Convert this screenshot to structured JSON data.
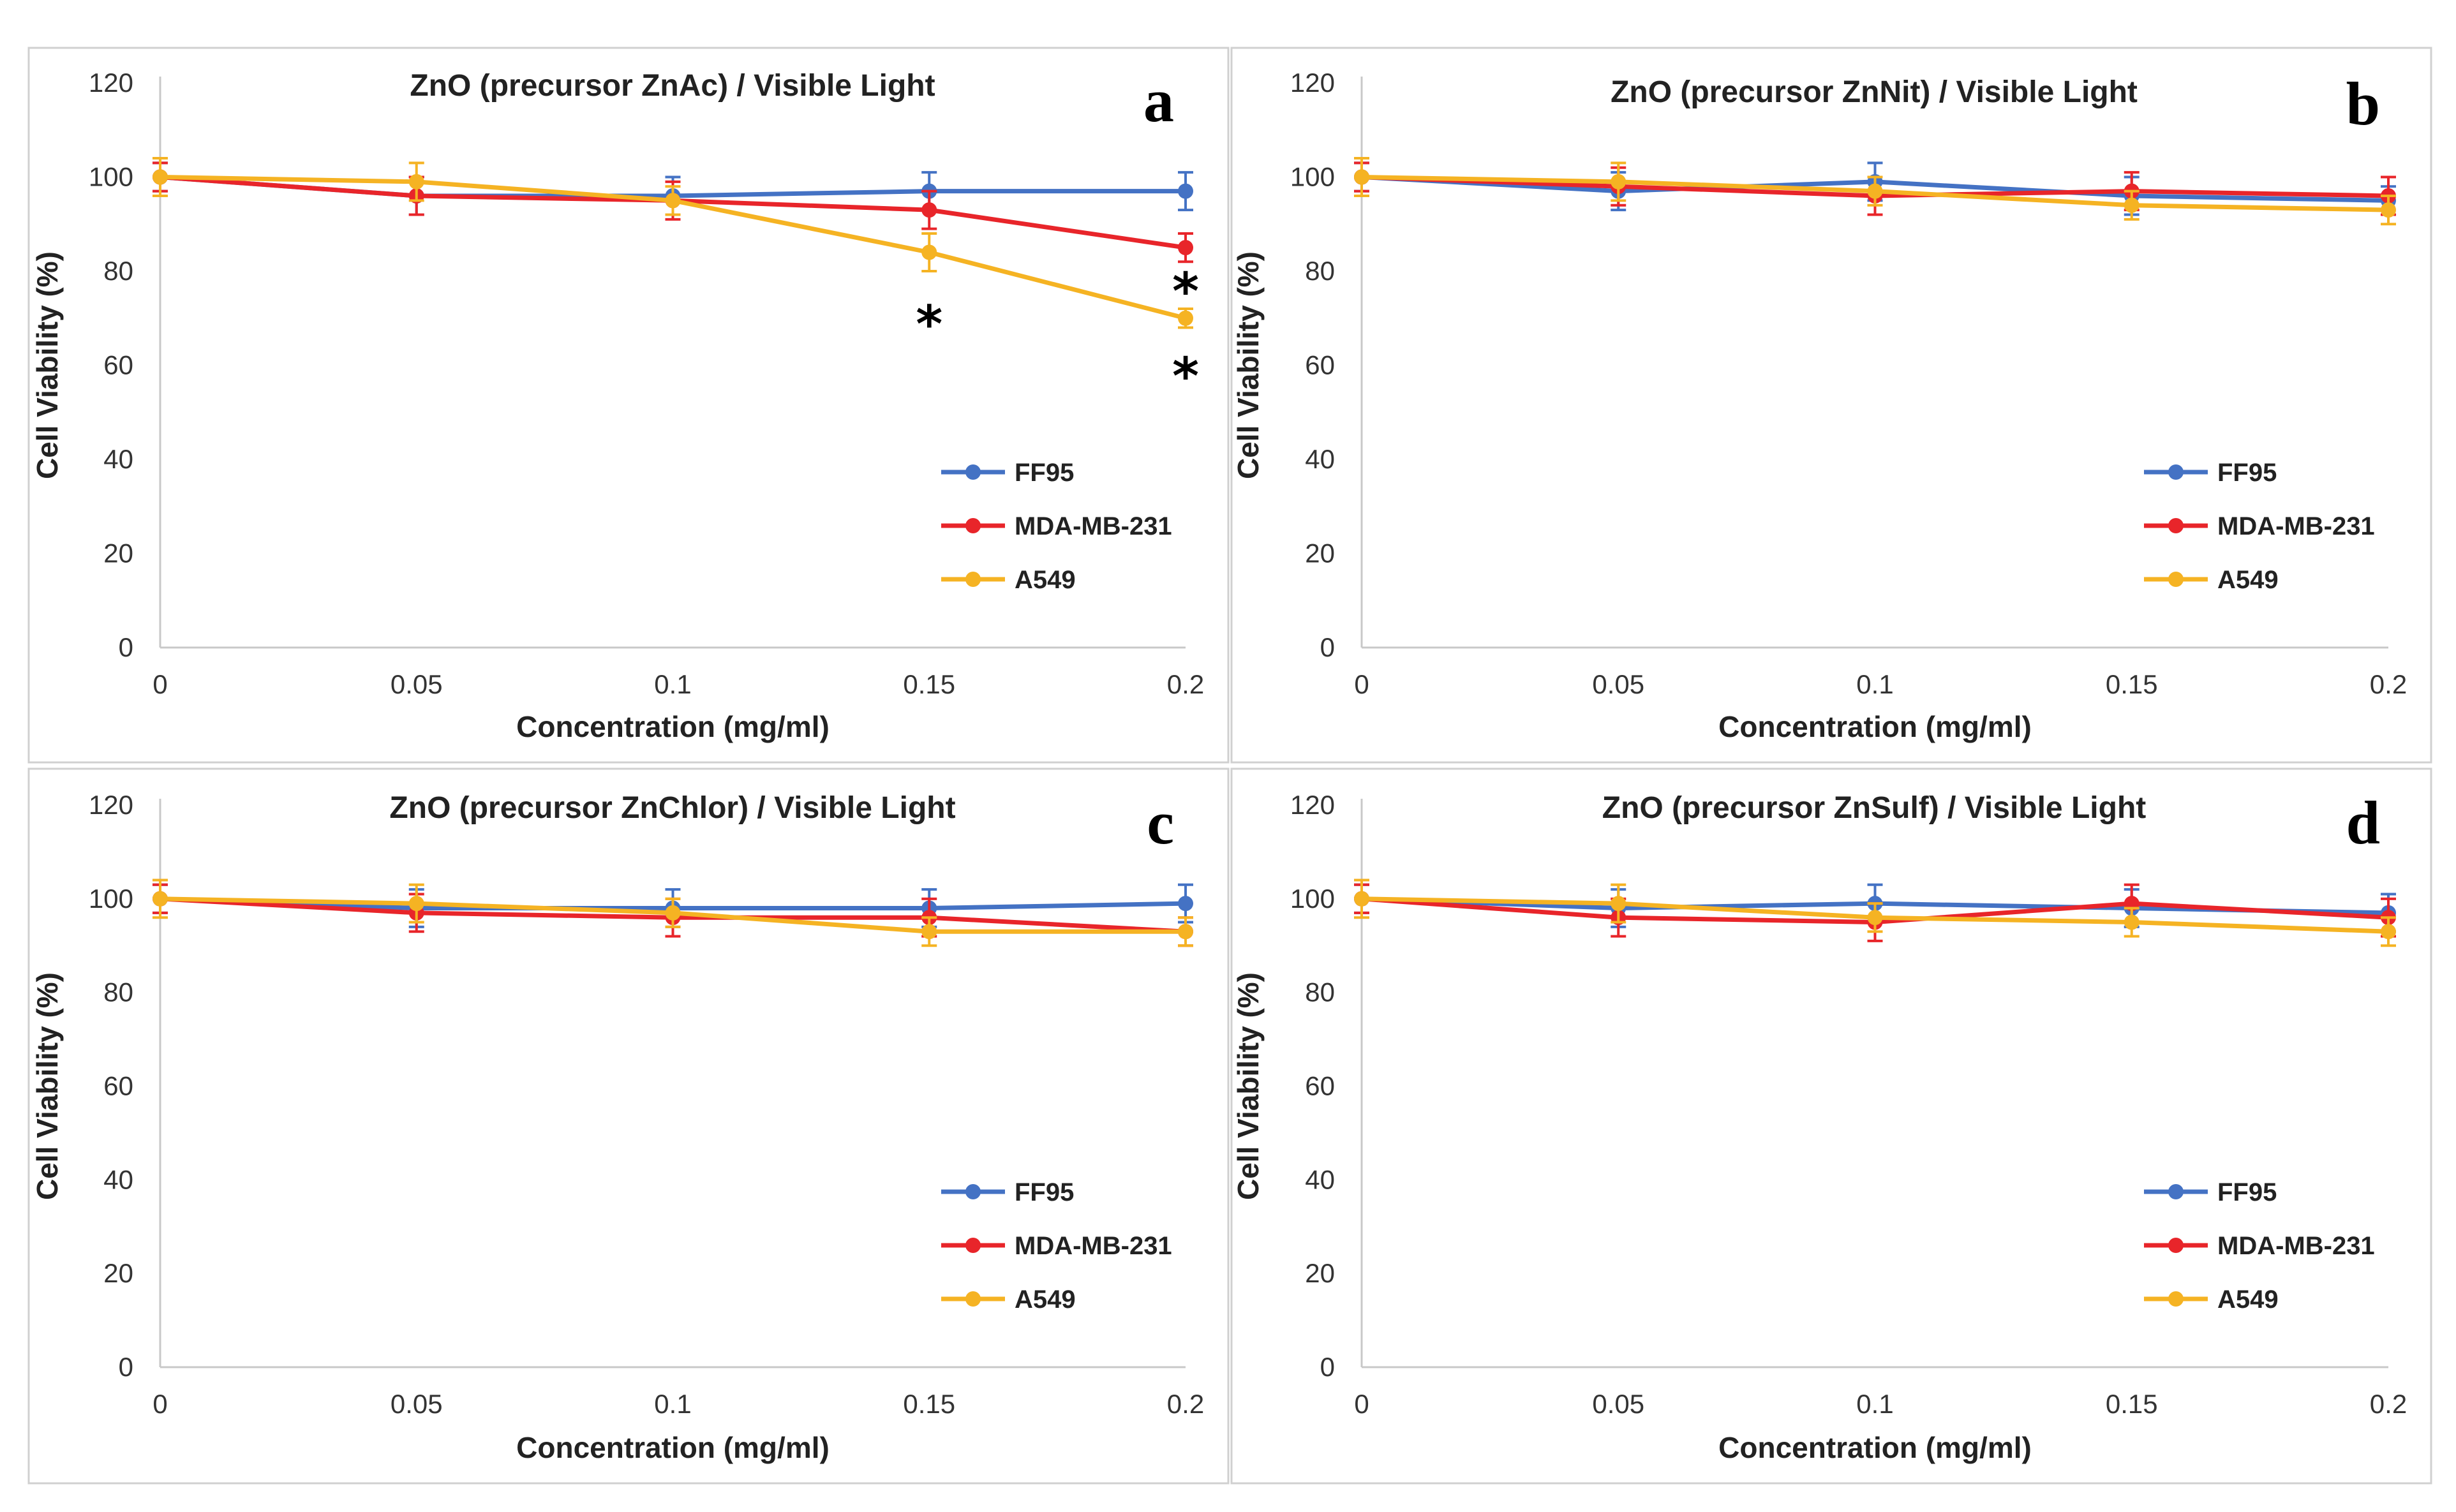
{
  "chart_data": [
    {
      "type": "line",
      "panel_label": "a",
      "title": "ZnO (precursor ZnAc) / Visible Light",
      "xlabel": "Concentration (mg/ml)",
      "ylabel": "Cell Viability (%)",
      "x": [
        0,
        0.05,
        0.1,
        0.15,
        0.2
      ],
      "x_tick_labels": [
        "0",
        "0.05",
        "0.1",
        "0.15",
        "0.2"
      ],
      "y_ticks": [
        0,
        20,
        40,
        60,
        80,
        100,
        120
      ],
      "ylim": [
        0,
        120
      ],
      "legend_position": "center-right",
      "series": [
        {
          "name": "FF95",
          "color": "#4472C4",
          "values": [
            100,
            96,
            96,
            97,
            97
          ],
          "errors": [
            3,
            4,
            4,
            4,
            4
          ]
        },
        {
          "name": "MDA-MB-231",
          "color": "#E8252A",
          "values": [
            100,
            96,
            95,
            93,
            85
          ],
          "errors": [
            3,
            4,
            4,
            4,
            3
          ]
        },
        {
          "name": "A549",
          "color": "#F5B323",
          "values": [
            100,
            99,
            95,
            84,
            70
          ],
          "errors": [
            4,
            4,
            3,
            4,
            2
          ]
        }
      ],
      "annotations": [
        {
          "text": "*",
          "x": 0.15,
          "y": 69
        },
        {
          "text": "*",
          "x": 0.2,
          "y": 76
        },
        {
          "text": "*",
          "x": 0.2,
          "y": 58
        }
      ]
    },
    {
      "type": "line",
      "panel_label": "b",
      "title": "ZnO (precursor ZnNit) / Visible Light",
      "xlabel": "Concentration (mg/ml)",
      "ylabel": "Cell Viability (%)",
      "x": [
        0,
        0.05,
        0.1,
        0.15,
        0.2
      ],
      "x_tick_labels": [
        "0",
        "0.05",
        "0.1",
        "0.15",
        "0.2"
      ],
      "y_ticks": [
        0,
        20,
        40,
        60,
        80,
        100,
        120
      ],
      "ylim": [
        0,
        120
      ],
      "legend_position": "center-right",
      "series": [
        {
          "name": "FF95",
          "color": "#4472C4",
          "values": [
            100,
            97,
            99,
            96,
            95
          ],
          "errors": [
            3,
            4,
            4,
            4,
            3
          ]
        },
        {
          "name": "MDA-MB-231",
          "color": "#E8252A",
          "values": [
            100,
            98,
            96,
            97,
            96
          ],
          "errors": [
            3,
            4,
            4,
            4,
            4
          ]
        },
        {
          "name": "A549",
          "color": "#F5B323",
          "values": [
            100,
            99,
            97,
            94,
            93
          ],
          "errors": [
            4,
            4,
            3,
            3,
            3
          ]
        }
      ],
      "annotations": []
    },
    {
      "type": "line",
      "panel_label": "c",
      "title": "ZnO (precursor ZnChlor) / Visible Light",
      "xlabel": "Concentration (mg/ml)",
      "ylabel": "Cell Viability (%)",
      "x": [
        0,
        0.05,
        0.1,
        0.15,
        0.2
      ],
      "x_tick_labels": [
        "0",
        "0.05",
        "0.1",
        "0.15",
        "0.2"
      ],
      "y_ticks": [
        0,
        20,
        40,
        60,
        80,
        100,
        120
      ],
      "ylim": [
        0,
        120
      ],
      "legend_position": "center-right",
      "series": [
        {
          "name": "FF95",
          "color": "#4472C4",
          "values": [
            100,
            98,
            98,
            98,
            99
          ],
          "errors": [
            3,
            4,
            4,
            4,
            4
          ]
        },
        {
          "name": "MDA-MB-231",
          "color": "#E8252A",
          "values": [
            100,
            97,
            96,
            96,
            93
          ],
          "errors": [
            3,
            4,
            4,
            4,
            3
          ]
        },
        {
          "name": "A549",
          "color": "#F5B323",
          "values": [
            100,
            99,
            97,
            93,
            93
          ],
          "errors": [
            4,
            4,
            3,
            3,
            3
          ]
        }
      ],
      "annotations": []
    },
    {
      "type": "line",
      "panel_label": "d",
      "title": "ZnO (precursor ZnSulf) / Visible Light",
      "xlabel": "Concentration (mg/ml)",
      "ylabel": "Cell Viability (%)",
      "x": [
        0,
        0.05,
        0.1,
        0.15,
        0.2
      ],
      "x_tick_labels": [
        "0",
        "0.05",
        "0.1",
        "0.15",
        "0.2"
      ],
      "y_ticks": [
        0,
        20,
        40,
        60,
        80,
        100,
        120
      ],
      "ylim": [
        0,
        120
      ],
      "legend_position": "center-right",
      "series": [
        {
          "name": "FF95",
          "color": "#4472C4",
          "values": [
            100,
            98,
            99,
            98,
            97
          ],
          "errors": [
            3,
            4,
            4,
            4,
            4
          ]
        },
        {
          "name": "MDA-MB-231",
          "color": "#E8252A",
          "values": [
            100,
            96,
            95,
            99,
            96
          ],
          "errors": [
            3,
            4,
            4,
            4,
            4
          ]
        },
        {
          "name": "A549",
          "color": "#F5B323",
          "values": [
            100,
            99,
            96,
            95,
            93
          ],
          "errors": [
            4,
            4,
            3,
            3,
            3
          ]
        }
      ],
      "annotations": []
    }
  ]
}
